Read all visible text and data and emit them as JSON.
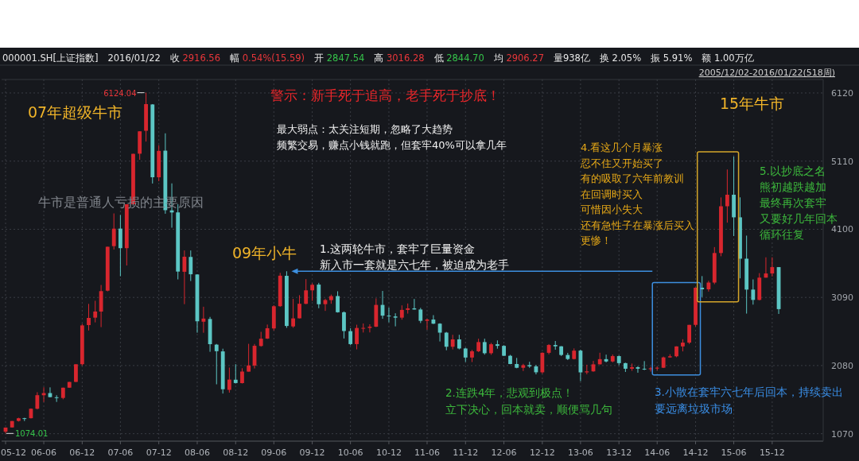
{
  "chart_data": {
    "type": "candlestick",
    "title": "警示：新手死于追高，老手死于抄底！",
    "x": [
      "2005-12",
      "2006-01",
      "2006-02",
      "2006-03",
      "2006-04",
      "2006-05",
      "2006-06",
      "2006-07",
      "2006-08",
      "2006-09",
      "2006-10",
      "2006-11",
      "2006-12",
      "2007-01",
      "2007-02",
      "2007-03",
      "2007-04",
      "2007-05",
      "2007-06",
      "2007-07",
      "2007-08",
      "2007-09",
      "2007-10",
      "2007-11",
      "2007-12",
      "2008-01",
      "2008-02",
      "2008-03",
      "2008-04",
      "2008-05",
      "2008-06",
      "2008-07",
      "2008-08",
      "2008-09",
      "2008-10",
      "2008-11",
      "2008-12",
      "2009-01",
      "2009-02",
      "2009-03",
      "2009-04",
      "2009-05",
      "2009-06",
      "2009-07",
      "2009-08",
      "2009-09",
      "2009-10",
      "2009-11",
      "2009-12",
      "2010-01",
      "2010-02",
      "2010-03",
      "2010-04",
      "2010-05",
      "2010-06",
      "2010-07",
      "2010-08",
      "2010-09",
      "2010-10",
      "2010-11",
      "2010-12",
      "2011-01",
      "2011-02",
      "2011-03",
      "2011-04",
      "2011-05",
      "2011-06",
      "2011-07",
      "2011-08",
      "2011-09",
      "2011-10",
      "2011-11",
      "2011-12",
      "2012-01",
      "2012-02",
      "2012-03",
      "2012-04",
      "2012-05",
      "2012-06",
      "2012-07",
      "2012-08",
      "2012-09",
      "2012-10",
      "2012-11",
      "2012-12",
      "2013-01",
      "2013-02",
      "2013-03",
      "2013-04",
      "2013-05",
      "2013-06",
      "2013-07",
      "2013-08",
      "2013-09",
      "2013-10",
      "2013-11",
      "2013-12",
      "2014-01",
      "2014-02",
      "2014-03",
      "2014-04",
      "2014-05",
      "2014-06",
      "2014-07",
      "2014-08",
      "2014-09",
      "2014-10",
      "2014-11",
      "2014-12",
      "2015-01",
      "2015-02",
      "2015-03",
      "2015-04",
      "2015-05",
      "2015-06",
      "2015-07",
      "2015-08",
      "2015-09",
      "2015-10",
      "2015-11",
      "2015-12",
      "2016-01"
    ],
    "ohlc": [
      [
        1100,
        1163,
        1074.01,
        1161
      ],
      [
        1163,
        1258,
        1161,
        1258
      ],
      [
        1260,
        1307,
        1250,
        1299
      ],
      [
        1300,
        1306,
        1258,
        1298
      ],
      [
        1300,
        1445,
        1296,
        1440
      ],
      [
        1440,
        1685,
        1430,
        1641
      ],
      [
        1640,
        1758,
        1541,
        1672
      ],
      [
        1672,
        1757,
        1610,
        1612
      ],
      [
        1610,
        1640,
        1541,
        1601
      ],
      [
        1600,
        1753,
        1580,
        1752
      ],
      [
        1752,
        1838,
        1751,
        1837
      ],
      [
        1838,
        2100,
        1835,
        2099
      ],
      [
        2100,
        2698,
        2080,
        2675
      ],
      [
        2680,
        2994,
        2600,
        2786
      ],
      [
        2790,
        3040,
        2720,
        2881
      ],
      [
        2880,
        3274,
        2650,
        3183
      ],
      [
        3190,
        3841,
        3180,
        3841
      ],
      [
        3850,
        4335,
        3800,
        4109
      ],
      [
        4110,
        4311,
        3404,
        3820
      ],
      [
        3820,
        4471,
        3563,
        4471
      ],
      [
        4470,
        5219,
        4470,
        5218
      ],
      [
        5220,
        5552,
        5130,
        5552
      ],
      [
        5560,
        6124.04,
        5400,
        5955
      ],
      [
        5950,
        5955,
        4778,
        4871
      ],
      [
        4870,
        5347,
        4812,
        5262
      ],
      [
        5265,
        5522,
        4330,
        4383
      ],
      [
        4380,
        4780,
        4123,
        4349
      ],
      [
        4350,
        4472,
        3357,
        3473
      ],
      [
        3470,
        3786,
        2990,
        3693
      ],
      [
        3690,
        3786,
        3333,
        3433
      ],
      [
        3430,
        3434,
        2567,
        2736
      ],
      [
        2730,
        2952,
        2566,
        2776
      ],
      [
        2770,
        2801,
        2284,
        2397
      ],
      [
        2390,
        2400,
        1802,
        2293
      ],
      [
        2290,
        2330,
        1665,
        1729
      ],
      [
        1720,
        2050,
        1678,
        1872
      ],
      [
        1870,
        2100,
        1814,
        1821
      ],
      [
        1820,
        2040,
        1814,
        1991
      ],
      [
        1990,
        2402,
        1990,
        2082
      ],
      [
        2080,
        2400,
        2037,
        2373
      ],
      [
        2370,
        2580,
        2360,
        2478
      ],
      [
        2480,
        2688,
        2474,
        2633
      ],
      [
        2630,
        2975,
        2600,
        2959
      ],
      [
        2960,
        3454,
        2950,
        3412
      ],
      [
        3410,
        3478,
        2639,
        2667
      ],
      [
        2660,
        3068,
        2640,
        2779
      ],
      [
        2780,
        3123,
        2780,
        2996
      ],
      [
        2995,
        3361,
        2990,
        3195
      ],
      [
        3195,
        3300,
        3039,
        3277
      ],
      [
        3280,
        3306,
        2930,
        2989
      ],
      [
        2990,
        3070,
        2890,
        3051
      ],
      [
        3050,
        3132,
        2996,
        3109
      ],
      [
        3110,
        3181,
        2865,
        2870
      ],
      [
        2870,
        2882,
        2481,
        2592
      ],
      [
        2590,
        2633,
        2382,
        2398
      ],
      [
        2398,
        2685,
        2320,
        2637
      ],
      [
        2637,
        2704,
        2570,
        2638
      ],
      [
        2638,
        2692,
        2571,
        2656
      ],
      [
        2656,
        3076,
        2650,
        2979
      ],
      [
        2979,
        3186,
        2773,
        2820
      ],
      [
        2820,
        2939,
        2721,
        2808
      ],
      [
        2808,
        2855,
        2661,
        2790
      ],
      [
        2790,
        2972,
        2760,
        2905
      ],
      [
        2905,
        3000,
        2850,
        2928
      ],
      [
        2928,
        3067,
        2910,
        2911
      ],
      [
        2911,
        2935,
        2710,
        2743
      ],
      [
        2743,
        2774,
        2610,
        2762
      ],
      [
        2762,
        2827,
        2695,
        2701
      ],
      [
        2701,
        2708,
        2437,
        2568
      ],
      [
        2568,
        2578,
        2307,
        2359
      ],
      [
        2359,
        2536,
        2319,
        2468
      ],
      [
        2468,
        2536,
        2320,
        2333
      ],
      [
        2333,
        2345,
        2134,
        2199
      ],
      [
        2199,
        2313,
        2132,
        2292
      ],
      [
        2292,
        2478,
        2280,
        2428
      ],
      [
        2428,
        2478,
        2242,
        2263
      ],
      [
        2263,
        2416,
        2240,
        2396
      ],
      [
        2396,
        2453,
        2330,
        2372
      ],
      [
        2372,
        2382,
        2222,
        2225
      ],
      [
        2225,
        2238,
        2100,
        2103
      ],
      [
        2103,
        2193,
        2040,
        2047
      ],
      [
        2047,
        2106,
        1999,
        2086
      ],
      [
        2086,
        2136,
        2046,
        2068
      ],
      [
        2068,
        2090,
        1949,
        1980
      ],
      [
        1980,
        2276,
        1959,
        2269
      ],
      [
        2269,
        2398,
        2246,
        2385
      ],
      [
        2385,
        2444,
        2315,
        2365
      ],
      [
        2365,
        2368,
        2222,
        2237
      ],
      [
        2237,
        2268,
        2162,
        2177
      ],
      [
        2177,
        2334,
        2170,
        2301
      ],
      [
        2301,
        2315,
        1849,
        1979
      ],
      [
        1979,
        2092,
        1951,
        1994
      ],
      [
        1994,
        2149,
        1988,
        2098
      ],
      [
        2098,
        2270,
        2097,
        2175
      ],
      [
        2175,
        2242,
        2127,
        2141
      ],
      [
        2141,
        2244,
        2127,
        2220
      ],
      [
        2220,
        2230,
        2085,
        2116
      ],
      [
        2116,
        2122,
        1985,
        2033
      ],
      [
        2033,
        2110,
        2002,
        2056
      ],
      [
        2056,
        2070,
        1974,
        2033
      ],
      [
        2033,
        2146,
        2013,
        2026
      ],
      [
        2026,
        2061,
        1991,
        2039
      ],
      [
        2039,
        2063,
        2010,
        2048
      ],
      [
        2048,
        2213,
        2043,
        2201
      ],
      [
        2201,
        2248,
        2196,
        2217
      ],
      [
        2217,
        2365,
        2203,
        2364
      ],
      [
        2364,
        2470,
        2290,
        2420
      ],
      [
        2420,
        2683,
        2400,
        2683
      ],
      [
        2683,
        3239,
        2658,
        3234
      ],
      [
        3234,
        3406,
        3095,
        3210
      ],
      [
        3210,
        3336,
        3177,
        3310
      ],
      [
        3310,
        3836,
        3286,
        3748
      ],
      [
        3748,
        4572,
        3700,
        4441
      ],
      [
        4441,
        4986,
        4198,
        4612
      ],
      [
        4612,
        5178,
        4000,
        4277
      ],
      [
        4277,
        4573,
        3373,
        3664
      ],
      [
        3664,
        4006,
        2850,
        3206
      ],
      [
        3206,
        3357,
        2983,
        3053
      ],
      [
        3053,
        3450,
        3046,
        3383
      ],
      [
        3383,
        3684,
        3383,
        3445
      ],
      [
        3445,
        3685,
        3400,
        3539
      ],
      [
        3539,
        3539,
        2845,
        2916.56
      ]
    ],
    "xlim": [
      "2005-11-12",
      "2016-07-31"
    ],
    "xticks": [
      {
        "value": "2005-12",
        "label": "05-12"
      },
      {
        "value": "2006-06",
        "label": "06-06"
      },
      {
        "value": "2006-12",
        "label": "06-12"
      },
      {
        "value": "2007-06",
        "label": "07-06"
      },
      {
        "value": "2007-12",
        "label": "07-12"
      },
      {
        "value": "2008-06",
        "label": "08-06"
      },
      {
        "value": "2008-12",
        "label": "08-12"
      },
      {
        "value": "2009-06",
        "label": "09-06"
      },
      {
        "value": "2009-12",
        "label": "09-12"
      },
      {
        "value": "2010-06",
        "label": "10-06"
      },
      {
        "value": "2010-12",
        "label": "10-12"
      },
      {
        "value": "2011-06",
        "label": "11-06"
      },
      {
        "value": "2011-12",
        "label": "11-12"
      },
      {
        "value": "2012-06",
        "label": "12-06"
      },
      {
        "value": "2012-12",
        "label": "12-12"
      },
      {
        "value": "2013-06",
        "label": "13-06"
      },
      {
        "value": "2013-12",
        "label": "13-12"
      },
      {
        "value": "2014-06",
        "label": "14-06"
      },
      {
        "value": "2014-12",
        "label": "14-12"
      },
      {
        "value": "2015-06",
        "label": "15-06"
      },
      {
        "value": "2015-12",
        "label": "15-12"
      }
    ],
    "ylim": [
      960,
      6320
    ],
    "yticks": [
      1070,
      2080,
      3090,
      4100,
      5110,
      6120
    ],
    "grid": true,
    "annotations": [
      "000001.SH[上证指数]",
      "2016/01/22",
      "收 2916.56",
      "幅 0.54%(15.59)",
      "开 2847.54",
      "高 3016.28",
      "低 2844.70",
      "均 2906.27",
      "量938亿",
      "换 2.05%",
      "振 5.91%",
      "额 1.00万亿",
      "2005/12/02-2016/01/22(518周)",
      {
        "text": "6124.04",
        "x": "2007-10",
        "y": 6124.04
      },
      {
        "text": "1074.01",
        "x": "2005-12",
        "y": 1074.01
      },
      "07年超级牛市",
      "牛市是普通人亏损的主要原因",
      "09年小牛",
      "最大弱点：太关注短期，忽略了大趋势",
      "频繁交易，赚点小钱就跑，但套牢40%可以拿几年",
      "1.这两轮牛市，套牢了巨量资金",
      "新入市一套就是六七年，被迫成为老手",
      "2.连跌4年，悲观到极点！",
      "立下决心，回本就卖，顺便骂几句",
      "3.小散在套牢六七年后回本，持续卖出",
      "要远离垃圾市场",
      "4.看这几个月暴涨",
      "忍不住又开始买了",
      "有的吸取了六年前教训",
      "在回调时买入",
      "可惜因小失大",
      "还有急性子在暴涨后买入",
      "更惨！",
      "15年牛市",
      "5.以抄底之名",
      "熊初越跌越加",
      "最终再次套牢",
      "又要好几年回本",
      "循环往复"
    ]
  }
}
